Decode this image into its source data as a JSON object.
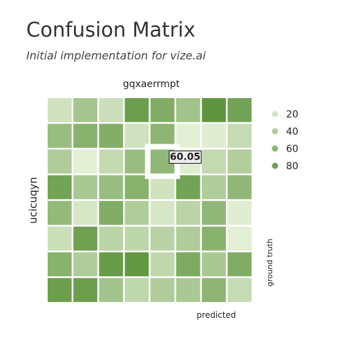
{
  "title": "Confusion Matrix",
  "subtitle": "Initial implementation for vize.ai",
  "chart_data": {
    "type": "heatmap",
    "top_label": "gqxaerrmpt",
    "left_label": "ucicuqyn",
    "xlabel": "predicted",
    "ylabel": "ground truth",
    "color_range": [
      "#f4fbe9",
      "#4f8a2c"
    ],
    "value_range": [
      0,
      100
    ],
    "values": [
      [
        22,
        48,
        25,
        82,
        70,
        50,
        90,
        78
      ],
      [
        55,
        65,
        68,
        22,
        62,
        10,
        12,
        28
      ],
      [
        42,
        10,
        30,
        55,
        60,
        13,
        30,
        40
      ],
      [
        78,
        45,
        55,
        65,
        22,
        78,
        42,
        60
      ],
      [
        58,
        18,
        70,
        42,
        18,
        35,
        60,
        12
      ],
      [
        25,
        80,
        35,
        33,
        36,
        42,
        65,
        10
      ],
      [
        65,
        42,
        85,
        88,
        32,
        72,
        45,
        70
      ],
      [
        82,
        82,
        50,
        32,
        42,
        45,
        62,
        28
      ]
    ],
    "highlight": {
      "row": 2,
      "col": 4,
      "value": "60.05"
    },
    "legend": [
      {
        "label": "20",
        "value": 20
      },
      {
        "label": "40",
        "value": 40
      },
      {
        "label": "60",
        "value": 60
      },
      {
        "label": "80",
        "value": 80
      }
    ],
    "legend_position": "right"
  }
}
